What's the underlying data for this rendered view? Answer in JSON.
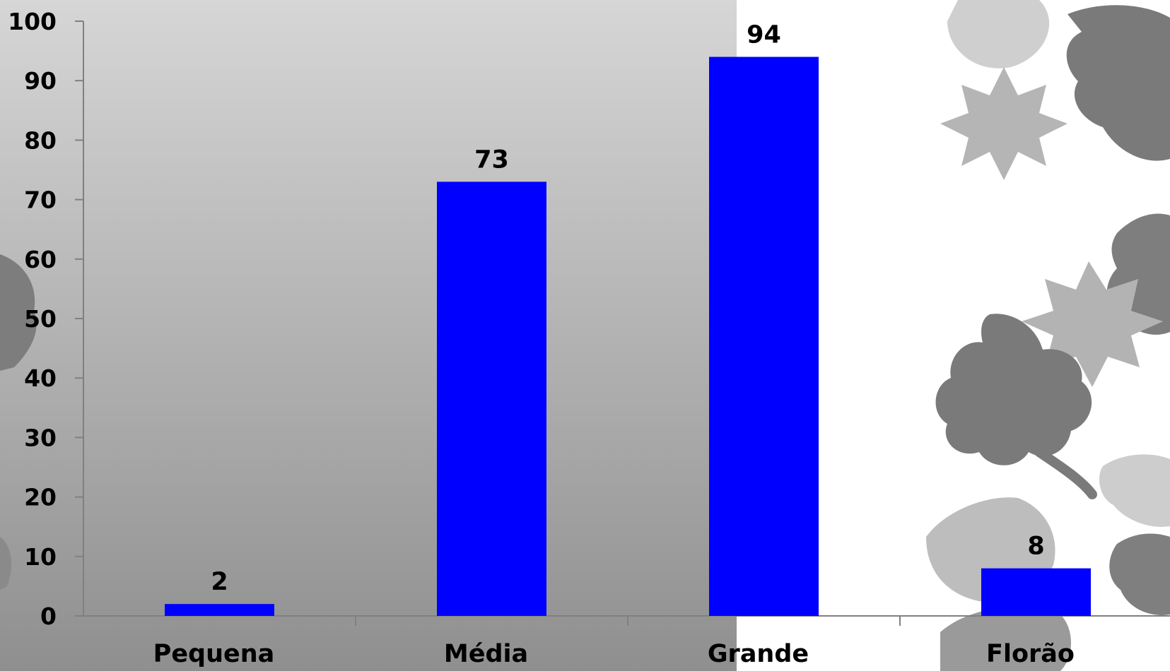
{
  "chart_data": {
    "type": "bar",
    "categories": [
      "Pequena",
      "Média",
      "Grande",
      "Florão"
    ],
    "values": [
      2,
      73,
      94,
      8
    ],
    "data_labels": [
      "2",
      "73",
      "94",
      "8"
    ],
    "ylim": [
      0,
      100
    ],
    "y_ticks": [
      "0",
      "10",
      "20",
      "30",
      "40",
      "50",
      "60",
      "70",
      "80",
      "90",
      "100"
    ],
    "title": "",
    "xlabel": "",
    "ylabel": "",
    "grid": false,
    "legend": "none",
    "bar_color": "#0000FF",
    "colors": {
      "plot_gradient_top": "#d6d6d6",
      "plot_gradient_bottom": "#8f8f8f",
      "axis": "#808080",
      "leaf_dark": "#7a7a7a",
      "leaf_light": "#b8b8b8",
      "text": "#000000"
    }
  }
}
